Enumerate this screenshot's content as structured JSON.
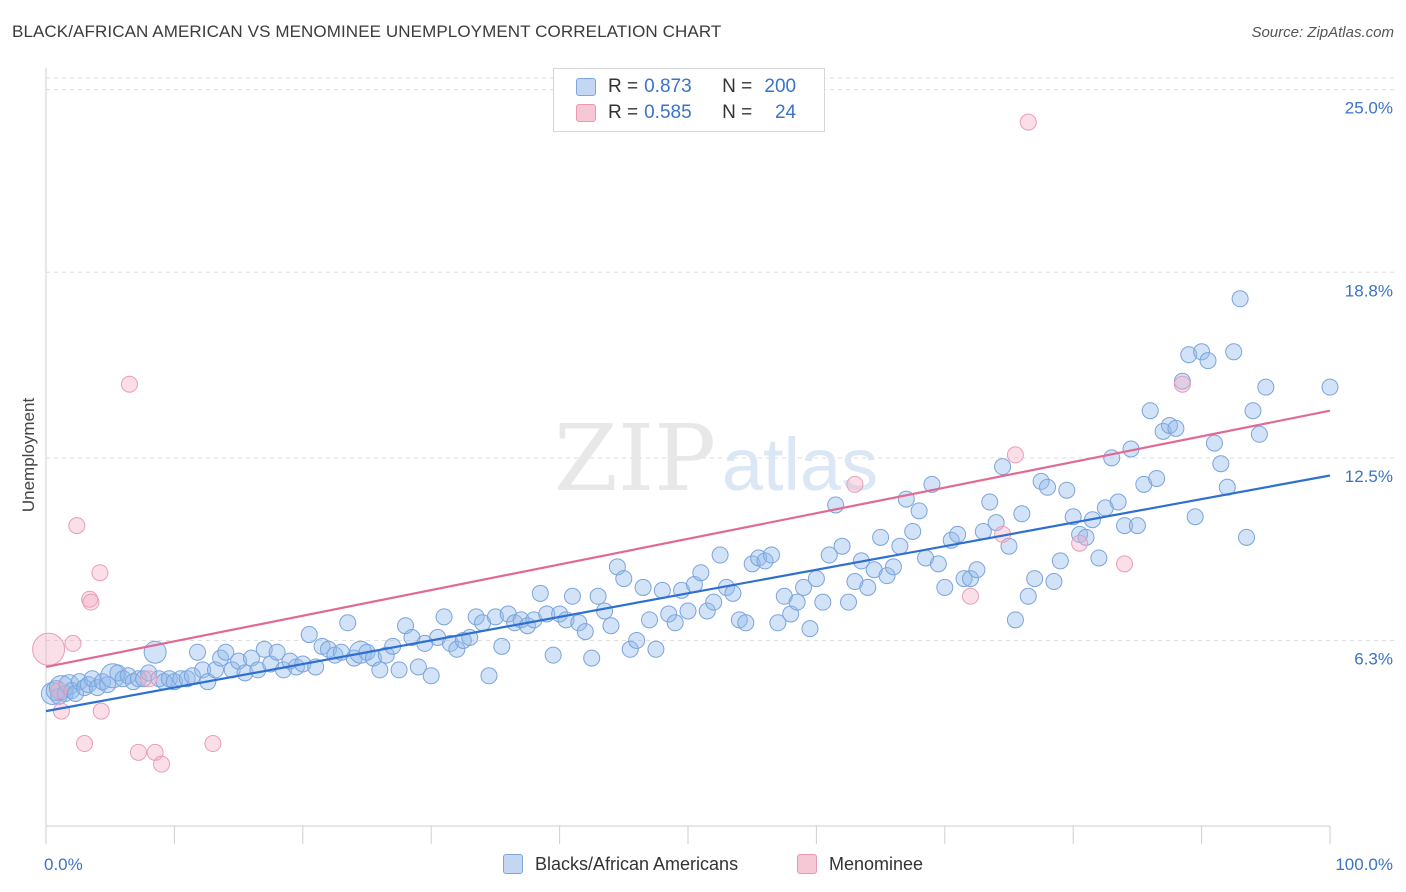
{
  "title": "BLACK/AFRICAN AMERICAN VS MENOMINEE UNEMPLOYMENT CORRELATION CHART",
  "source": "Source: ZipAtlas.com",
  "watermark": {
    "zip": "ZIP",
    "atlas": "atlas"
  },
  "legend": {
    "r_label": "R =",
    "n_label": "N =",
    "rows": [
      {
        "r": "0.873",
        "n": "200",
        "color": "#5b8fd6"
      },
      {
        "r": "0.585",
        "n": "24",
        "color": "#e8799a"
      }
    ]
  },
  "bottom_legend": {
    "blue": "Blacks/African Americans",
    "pink": "Menominee"
  },
  "chart_data": {
    "type": "scatter",
    "ylabel": "Unemployment",
    "xlim": [
      0,
      100
    ],
    "ylim": [
      0,
      25.6
    ],
    "x_tick_labels": [
      "0.0%",
      "100.0%"
    ],
    "y_ticks": [
      6.3,
      12.5,
      18.8,
      25.0
    ],
    "y_tick_labels": [
      "6.3%",
      "12.5%",
      "18.8%",
      "25.0%"
    ],
    "grid": true,
    "colors": {
      "blue": "#5b8fd6",
      "pink": "#e8799a",
      "tick_label": "#3a73c8"
    },
    "series": [
      {
        "name": "Blacks/African Americans",
        "color": "blue",
        "trendline": [
          [
            0,
            3.9
          ],
          [
            100,
            11.9
          ]
        ],
        "points": [
          [
            0.5,
            4.5
          ],
          [
            0.8,
            4.6
          ],
          [
            1.0,
            4.4
          ],
          [
            1.2,
            4.7
          ],
          [
            1.5,
            4.5
          ],
          [
            1.8,
            4.8
          ],
          [
            2.0,
            4.6
          ],
          [
            2.3,
            4.5
          ],
          [
            2.6,
            4.9
          ],
          [
            3.0,
            4.7
          ],
          [
            3.3,
            4.8
          ],
          [
            3.6,
            5.0
          ],
          [
            4.0,
            4.7
          ],
          [
            4.4,
            4.9
          ],
          [
            4.8,
            4.8
          ],
          [
            5.2,
            5.1
          ],
          [
            5.6,
            5.2
          ],
          [
            6.0,
            5.0
          ],
          [
            6.4,
            5.1
          ],
          [
            6.8,
            4.9
          ],
          [
            7.2,
            5.0
          ],
          [
            7.6,
            5.0
          ],
          [
            8.0,
            5.2
          ],
          [
            8.5,
            5.9
          ],
          [
            8.8,
            5.0
          ],
          [
            9.2,
            4.9
          ],
          [
            9.6,
            5.0
          ],
          [
            10.0,
            4.9
          ],
          [
            10.5,
            5.0
          ],
          [
            11.0,
            5.0
          ],
          [
            11.4,
            5.1
          ],
          [
            11.8,
            5.9
          ],
          [
            12.2,
            5.3
          ],
          [
            12.6,
            4.9
          ],
          [
            13.2,
            5.3
          ],
          [
            13.6,
            5.7
          ],
          [
            14.0,
            5.9
          ],
          [
            14.5,
            5.3
          ],
          [
            15.0,
            5.6
          ],
          [
            15.5,
            5.2
          ],
          [
            16.0,
            5.7
          ],
          [
            16.5,
            5.3
          ],
          [
            17.0,
            6.0
          ],
          [
            17.5,
            5.5
          ],
          [
            18.0,
            5.9
          ],
          [
            18.5,
            5.3
          ],
          [
            19.0,
            5.6
          ],
          [
            19.5,
            5.4
          ],
          [
            20.0,
            5.5
          ],
          [
            20.5,
            6.5
          ],
          [
            21.0,
            5.4
          ],
          [
            21.5,
            6.1
          ],
          [
            22.0,
            6.0
          ],
          [
            22.5,
            5.8
          ],
          [
            23.0,
            5.9
          ],
          [
            23.5,
            6.9
          ],
          [
            24.0,
            5.7
          ],
          [
            24.5,
            5.9
          ],
          [
            25.0,
            5.9
          ],
          [
            25.5,
            5.7
          ],
          [
            26.0,
            5.3
          ],
          [
            26.5,
            5.8
          ],
          [
            27.0,
            6.1
          ],
          [
            27.5,
            5.3
          ],
          [
            28.0,
            6.8
          ],
          [
            28.5,
            6.4
          ],
          [
            29.0,
            5.4
          ],
          [
            29.5,
            6.2
          ],
          [
            30.0,
            5.1
          ],
          [
            30.5,
            6.4
          ],
          [
            31.0,
            7.1
          ],
          [
            31.5,
            6.2
          ],
          [
            32.0,
            6.0
          ],
          [
            32.5,
            6.3
          ],
          [
            33.0,
            6.4
          ],
          [
            33.5,
            7.1
          ],
          [
            34.0,
            6.9
          ],
          [
            34.5,
            5.1
          ],
          [
            35.0,
            7.1
          ],
          [
            35.5,
            6.1
          ],
          [
            36.0,
            7.2
          ],
          [
            36.5,
            6.9
          ],
          [
            37.0,
            7.0
          ],
          [
            37.5,
            6.8
          ],
          [
            38.0,
            7.0
          ],
          [
            38.5,
            7.9
          ],
          [
            39.0,
            7.2
          ],
          [
            39.5,
            5.8
          ],
          [
            40.0,
            7.2
          ],
          [
            40.5,
            7.0
          ],
          [
            41.0,
            7.8
          ],
          [
            41.5,
            6.9
          ],
          [
            42.0,
            6.6
          ],
          [
            42.5,
            5.7
          ],
          [
            43.0,
            7.8
          ],
          [
            43.5,
            7.3
          ],
          [
            44.0,
            6.8
          ],
          [
            44.5,
            8.8
          ],
          [
            45.0,
            8.4
          ],
          [
            45.5,
            6.0
          ],
          [
            46.0,
            6.3
          ],
          [
            46.5,
            8.1
          ],
          [
            47.0,
            7.0
          ],
          [
            47.5,
            6.0
          ],
          [
            48.0,
            8.0
          ],
          [
            48.5,
            7.2
          ],
          [
            49.0,
            6.9
          ],
          [
            49.5,
            8.0
          ],
          [
            50.0,
            7.3
          ],
          [
            50.5,
            8.2
          ],
          [
            51.0,
            8.6
          ],
          [
            51.5,
            7.3
          ],
          [
            52.0,
            7.6
          ],
          [
            52.5,
            9.2
          ],
          [
            53.0,
            8.1
          ],
          [
            53.5,
            7.9
          ],
          [
            54.0,
            7.0
          ],
          [
            54.5,
            6.9
          ],
          [
            55.0,
            8.9
          ],
          [
            55.5,
            9.1
          ],
          [
            56.0,
            9.0
          ],
          [
            56.5,
            9.2
          ],
          [
            57.0,
            6.9
          ],
          [
            57.5,
            7.8
          ],
          [
            58.0,
            7.2
          ],
          [
            58.5,
            7.6
          ],
          [
            59.0,
            8.1
          ],
          [
            59.5,
            6.7
          ],
          [
            60.0,
            8.4
          ],
          [
            60.5,
            7.6
          ],
          [
            61.0,
            9.2
          ],
          [
            61.5,
            10.9
          ],
          [
            62.0,
            9.5
          ],
          [
            62.5,
            7.6
          ],
          [
            63.0,
            8.3
          ],
          [
            63.5,
            9.0
          ],
          [
            64.0,
            8.1
          ],
          [
            64.5,
            8.7
          ],
          [
            65.0,
            9.8
          ],
          [
            65.5,
            8.5
          ],
          [
            66.0,
            8.8
          ],
          [
            66.5,
            9.5
          ],
          [
            67.0,
            11.1
          ],
          [
            67.5,
            10.0
          ],
          [
            68.0,
            10.7
          ],
          [
            68.5,
            9.1
          ],
          [
            69.0,
            11.6
          ],
          [
            69.5,
            8.9
          ],
          [
            70.0,
            8.1
          ],
          [
            70.5,
            9.7
          ],
          [
            71.0,
            9.9
          ],
          [
            71.5,
            8.4
          ],
          [
            72.0,
            8.4
          ],
          [
            72.5,
            8.7
          ],
          [
            73.0,
            10.0
          ],
          [
            73.5,
            11.0
          ],
          [
            74.0,
            10.3
          ],
          [
            74.5,
            12.2
          ],
          [
            75.0,
            9.5
          ],
          [
            75.5,
            7.0
          ],
          [
            76.0,
            10.6
          ],
          [
            76.5,
            7.8
          ],
          [
            77.0,
            8.4
          ],
          [
            77.5,
            11.7
          ],
          [
            78.0,
            11.5
          ],
          [
            78.5,
            8.3
          ],
          [
            79.0,
            9.0
          ],
          [
            79.5,
            11.4
          ],
          [
            80.0,
            10.5
          ],
          [
            80.5,
            9.9
          ],
          [
            81.0,
            9.8
          ],
          [
            81.5,
            10.4
          ],
          [
            82.0,
            9.1
          ],
          [
            82.5,
            10.8
          ],
          [
            83.0,
            12.5
          ],
          [
            83.5,
            11.0
          ],
          [
            84.0,
            10.2
          ],
          [
            84.5,
            12.8
          ],
          [
            85.0,
            10.2
          ],
          [
            85.5,
            11.6
          ],
          [
            86.0,
            14.1
          ],
          [
            86.5,
            11.8
          ],
          [
            87.0,
            13.4
          ],
          [
            87.5,
            13.6
          ],
          [
            88.0,
            13.5
          ],
          [
            88.5,
            15.1
          ],
          [
            89.0,
            16.0
          ],
          [
            89.5,
            10.5
          ],
          [
            90.0,
            16.1
          ],
          [
            90.5,
            15.8
          ],
          [
            91.0,
            13.0
          ],
          [
            91.5,
            12.3
          ],
          [
            92.0,
            11.5
          ],
          [
            92.5,
            16.1
          ],
          [
            93.0,
            17.9
          ],
          [
            93.5,
            9.8
          ],
          [
            94.0,
            14.1
          ],
          [
            94.5,
            13.3
          ],
          [
            95.0,
            14.9
          ],
          [
            100.0,
            14.9
          ]
        ]
      },
      {
        "name": "Menominee",
        "color": "pink",
        "trendline": [
          [
            0,
            5.4
          ],
          [
            100,
            14.1
          ]
        ],
        "points": [
          [
            0.2,
            6.0
          ],
          [
            1.0,
            4.6
          ],
          [
            1.2,
            3.9
          ],
          [
            2.1,
            6.2
          ],
          [
            2.4,
            10.2
          ],
          [
            3.0,
            2.8
          ],
          [
            3.4,
            7.7
          ],
          [
            3.5,
            7.6
          ],
          [
            4.2,
            8.6
          ],
          [
            4.3,
            3.9
          ],
          [
            6.5,
            15.0
          ],
          [
            7.2,
            2.5
          ],
          [
            8.0,
            5.0
          ],
          [
            8.5,
            2.5
          ],
          [
            9.0,
            2.1
          ],
          [
            13.0,
            2.8
          ],
          [
            63.0,
            11.6
          ],
          [
            72.0,
            7.8
          ],
          [
            74.5,
            9.9
          ],
          [
            75.5,
            12.6
          ],
          [
            76.5,
            23.9
          ],
          [
            80.5,
            9.6
          ],
          [
            84.0,
            8.9
          ],
          [
            88.5,
            15.0
          ]
        ]
      }
    ]
  }
}
